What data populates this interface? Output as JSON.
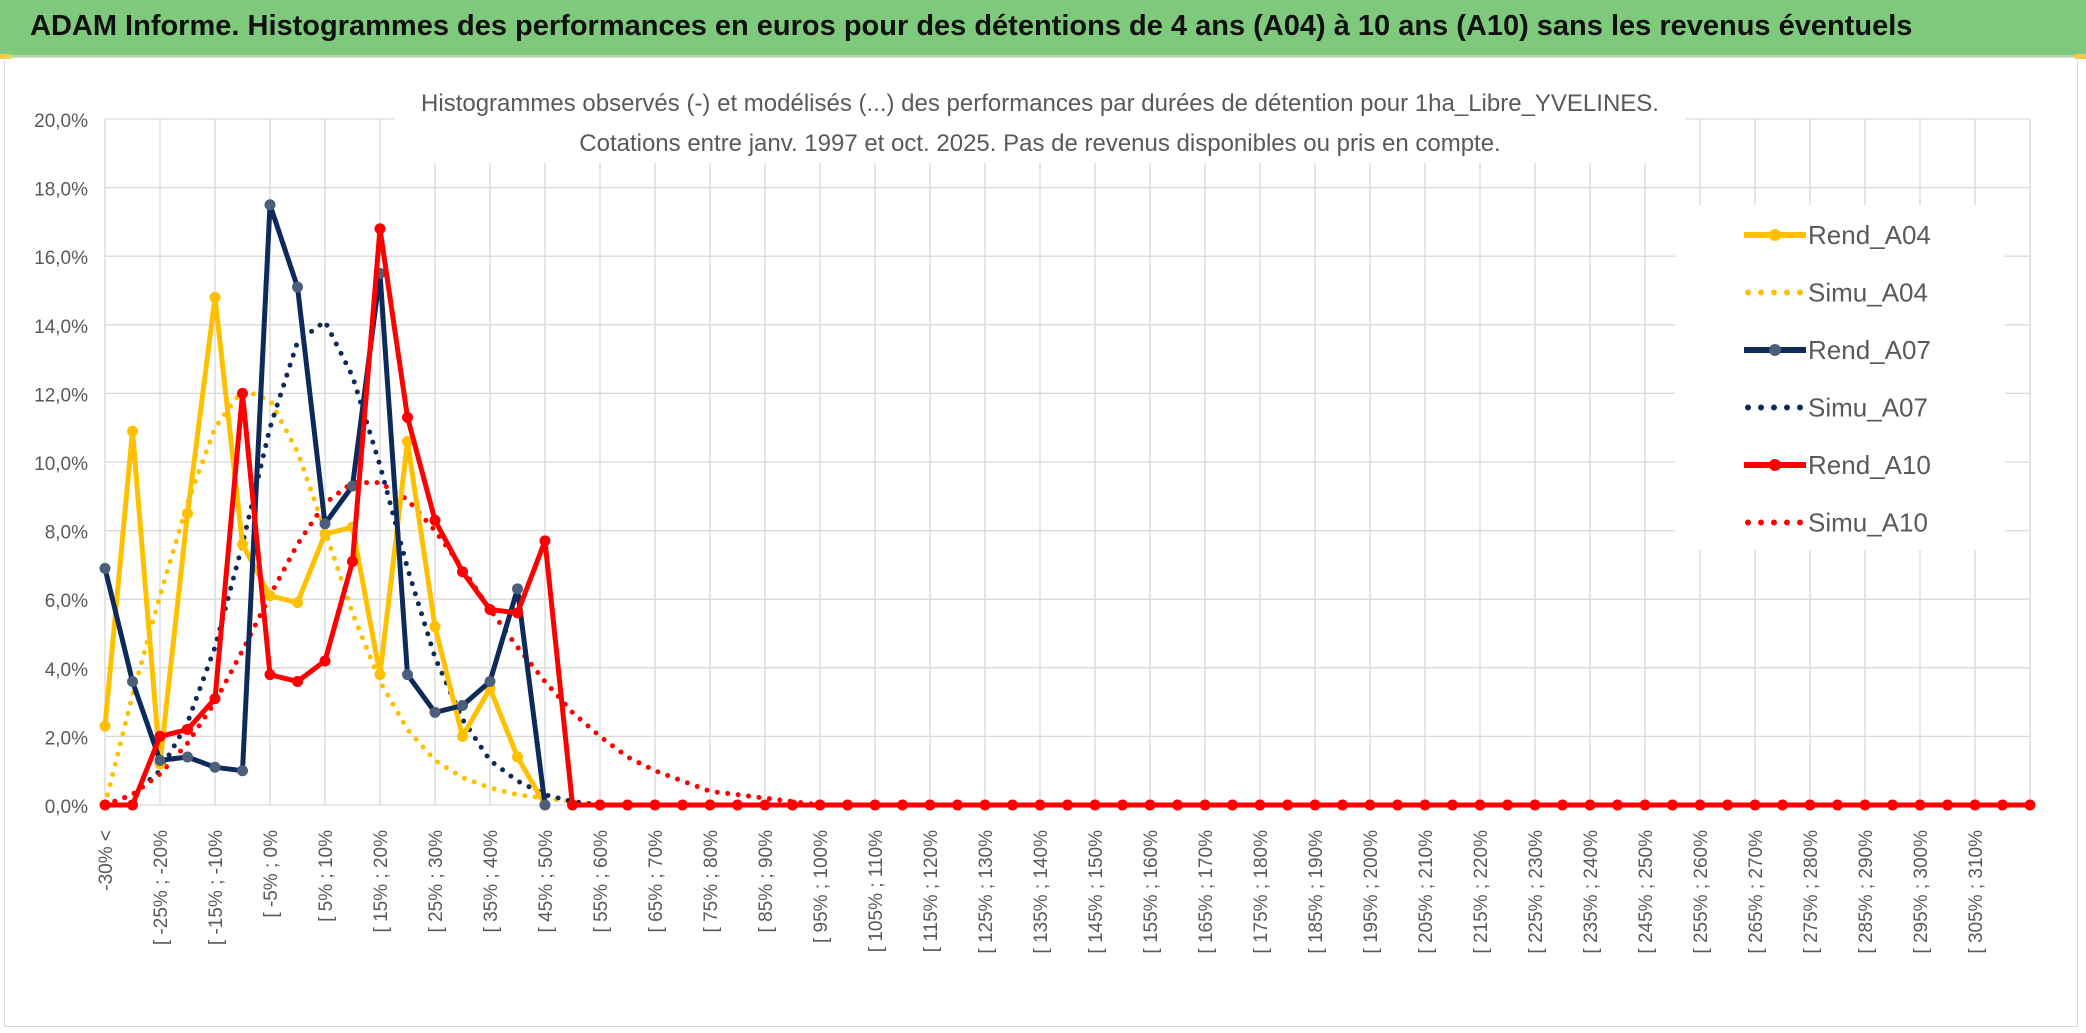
{
  "header": {
    "banner_title": "ADAM Informe. Histogrammes des performances en euros pour des détentions de 4 ans (A04) à 10 ans (A10) sans les revenus éventuels"
  },
  "chart_data": {
    "type": "line",
    "title": "Histogrammes observés (-) et modélisés (...) des performances par durées de détention pour 1ha_Libre_YVELINES.",
    "subtitle": "Cotations entre janv. 1997 et oct. 2025. Pas de revenus disponibles ou pris en compte.",
    "xlabel": "",
    "ylabel": "",
    "ylim": [
      0,
      20
    ],
    "yticks": [
      "0,0%",
      "2,0%",
      "4,0%",
      "6,0%",
      "8,0%",
      "10,0%",
      "12,0%",
      "14,0%",
      "16,0%",
      "18,0%",
      "20,0%"
    ],
    "x_tick_labels": [
      "-30% <",
      "[ -25% ; -20%",
      "[ -15% ; -10%",
      "[ -5% ; 0%",
      "[ 5% ; 10%",
      "[ 15% ; 20%",
      "[ 25% ; 30%",
      "[ 35% ; 40%",
      "[ 45% ; 50%",
      "[ 55% ; 60%",
      "[ 65% ; 70%",
      "[ 75% ; 80%",
      "[ 85% ; 90%",
      "[ 95% ; 100%",
      "[ 105% ; 110%",
      "[ 115% ; 120%",
      "[ 125% ; 130%",
      "[ 135% ; 140%",
      "[ 145% ; 150%",
      "[ 155% ; 160%",
      "[ 165% ; 170%",
      "[ 175% ; 180%",
      "[ 185% ; 190%",
      "[ 195% ; 200%",
      "[ 205% ; 210%",
      "[ 215% ; 220%",
      "[ 225% ; 230%",
      "[ 235% ; 240%",
      "[ 245% ; 250%",
      "[ 255% ; 260%",
      "[ 265% ; 270%",
      "[ 275% ; 280%",
      "[ 285% ; 290%",
      "[ 295% ; 300%",
      "[ 305% ; 310%"
    ],
    "n_categories": 71,
    "grid": true,
    "legend_position": "right",
    "series": [
      {
        "name": "Rend_A04",
        "style": "solid",
        "color": "#ffc000",
        "values": [
          2.3,
          10.9,
          1.2,
          8.5,
          14.8,
          7.6,
          6.1,
          5.9,
          7.9,
          8.1,
          3.8,
          10.6,
          5.2,
          2.0,
          3.4,
          1.4,
          0.0
        ]
      },
      {
        "name": "Simu_A04",
        "style": "dotted",
        "color": "#ffc000",
        "values": [
          0.0,
          3.2,
          6.1,
          8.8,
          11.0,
          12.1,
          11.8,
          10.3,
          8.0,
          5.6,
          3.6,
          2.2,
          1.3,
          0.8,
          0.5,
          0.3,
          0.2,
          0.1,
          0.0
        ]
      },
      {
        "name": "Rend_A07",
        "style": "solid",
        "color": "#0e2a5a",
        "values": [
          6.9,
          3.6,
          1.3,
          1.4,
          1.1,
          1.0,
          17.5,
          15.1,
          8.2,
          9.3,
          15.5,
          3.8,
          2.7,
          2.9,
          3.6,
          6.3,
          0.0
        ]
      },
      {
        "name": "Simu_A07",
        "style": "dotted",
        "color": "#0e2a5a",
        "values": [
          0.0,
          0.3,
          1.0,
          2.4,
          4.6,
          7.6,
          11.0,
          13.5,
          14.1,
          12.5,
          9.9,
          6.9,
          4.3,
          2.5,
          1.3,
          0.7,
          0.3,
          0.1,
          0.0
        ]
      },
      {
        "name": "Rend_A10",
        "style": "solid",
        "color": "#ff0000",
        "values": [
          0.0,
          0.0,
          2.0,
          2.2,
          3.1,
          12.0,
          3.8,
          3.6,
          4.2,
          7.1,
          16.8,
          11.3,
          8.3,
          6.8,
          5.7,
          5.6,
          7.7,
          0.0,
          0.0,
          0.0,
          0.0,
          0.0,
          0.0,
          0.0,
          0.0,
          0.0,
          0.0,
          0.0,
          0.0,
          0.0,
          0.0,
          0.0,
          0.0,
          0.0,
          0.0,
          0.0,
          0.0,
          0.0,
          0.0,
          0.0,
          0.0,
          0.0,
          0.0,
          0.0,
          0.0,
          0.0,
          0.0,
          0.0,
          0.0,
          0.0,
          0.0,
          0.0,
          0.0,
          0.0,
          0.0,
          0.0,
          0.0,
          0.0,
          0.0,
          0.0,
          0.0,
          0.0,
          0.0,
          0.0,
          0.0,
          0.0,
          0.0,
          0.0,
          0.0,
          0.0,
          0.0
        ]
      },
      {
        "name": "Simu_A10",
        "style": "dotted",
        "color": "#ff0000",
        "values": [
          0.0,
          0.3,
          0.9,
          1.8,
          3.0,
          4.5,
          6.1,
          7.6,
          8.8,
          9.4,
          9.4,
          8.9,
          8.0,
          6.9,
          5.7,
          4.6,
          3.6,
          2.7,
          2.0,
          1.4,
          1.0,
          0.7,
          0.4,
          0.3,
          0.2,
          0.1,
          0.0
        ]
      }
    ]
  }
}
